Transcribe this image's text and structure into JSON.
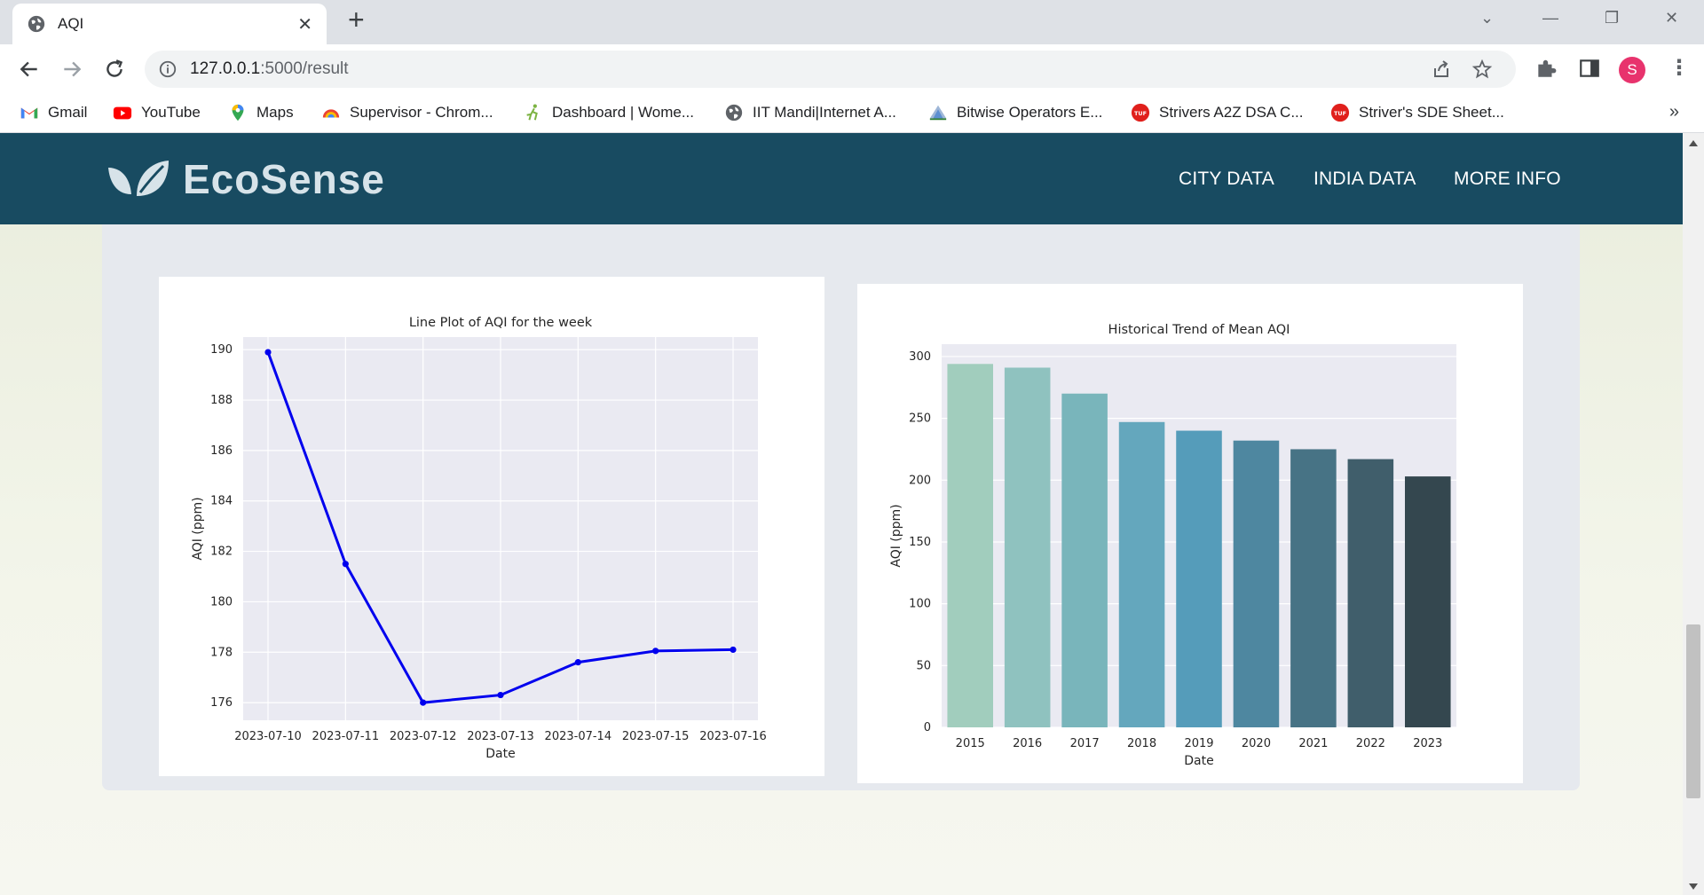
{
  "browser": {
    "tab_title": "AQI",
    "url_host": "127.0.0.1",
    "url_rest": ":5000/result",
    "profile_initial": "S",
    "bookmarks": [
      {
        "label": "Gmail",
        "icon": "gmail-icon"
      },
      {
        "label": "YouTube",
        "icon": "youtube-icon"
      },
      {
        "label": "Maps",
        "icon": "maps-icon"
      },
      {
        "label": "Supervisor - Chrom...",
        "icon": "supervisor-icon"
      },
      {
        "label": "Dashboard | Wome...",
        "icon": "dashboard-icon"
      },
      {
        "label": "IIT Mandi|Internet A...",
        "icon": "globe-icon"
      },
      {
        "label": "Bitwise Operators E...",
        "icon": "bitwise-icon"
      },
      {
        "label": "Strivers A2Z DSA C...",
        "icon": "tuf-icon"
      },
      {
        "label": "Striver's SDE Sheet...",
        "icon": "tuf-icon"
      }
    ]
  },
  "site": {
    "logo_text": "EcoSense",
    "nav": [
      "CITY DATA",
      "INDIA DATA",
      "MORE INFO"
    ]
  },
  "colors": {
    "header_bg": "#184b61",
    "line_color": "#0000ee",
    "plot_bg": "#eaeaf2",
    "bar_palette": [
      "#a1cdbd",
      "#8fc2bf",
      "#79b5bb",
      "#64a7bd",
      "#559cba",
      "#4e87a0",
      "#477385",
      "#405e6b",
      "#34474f"
    ]
  },
  "chart_data": [
    {
      "type": "line",
      "title": "Line Plot of AQI for the week",
      "xlabel": "Date",
      "ylabel": "AQI (ppm)",
      "x": [
        "2023-07-10",
        "2023-07-11",
        "2023-07-12",
        "2023-07-13",
        "2023-07-14",
        "2023-07-15",
        "2023-07-16"
      ],
      "y": [
        189.9,
        181.5,
        176.0,
        176.3,
        177.6,
        178.05,
        178.1
      ],
      "ylim": [
        175.3,
        190.5
      ],
      "yticks": [
        176,
        178,
        180,
        182,
        184,
        186,
        188,
        190
      ],
      "grid": true
    },
    {
      "type": "bar",
      "title": "Historical Trend of Mean AQI",
      "xlabel": "Date",
      "ylabel": "AQI (ppm)",
      "categories": [
        "2015",
        "2016",
        "2017",
        "2018",
        "2019",
        "2020",
        "2021",
        "2022",
        "2023"
      ],
      "values": [
        294,
        291,
        270,
        247,
        240,
        232,
        225,
        217,
        203
      ],
      "ylim": [
        0,
        310
      ],
      "yticks": [
        0,
        50,
        100,
        150,
        200,
        250,
        300
      ],
      "grid": true
    }
  ]
}
